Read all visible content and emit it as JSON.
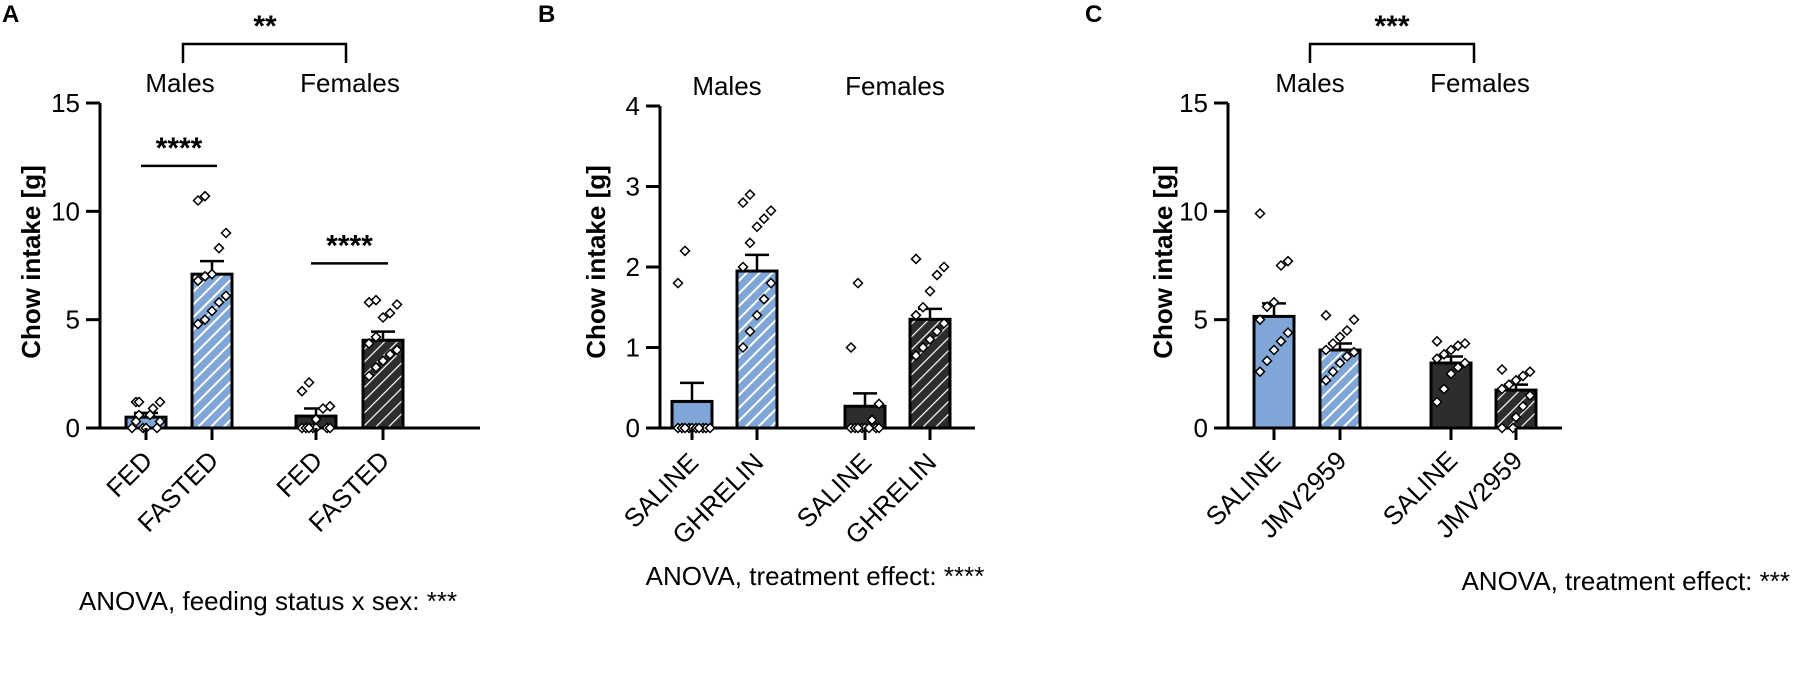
{
  "colors": {
    "male": "#7fa6d6",
    "female": "#2d2d2d",
    "axis": "#000000",
    "hatch": "#ffffff"
  },
  "chart_data": [
    {
      "panel": "A",
      "type": "bar",
      "ylabel": "Chow intake [g]",
      "ylim": [
        0,
        15
      ],
      "yticks": [
        0,
        5,
        10,
        15
      ],
      "groups": [
        "Males",
        "Females"
      ],
      "categories": [
        "FED",
        "FASTED",
        "FED",
        "FASTED"
      ],
      "bars": [
        {
          "group": "Males",
          "label": "FED",
          "value": 0.5,
          "sem": 0.2,
          "hatched": false,
          "points": [
            0,
            0,
            0,
            0,
            0.3,
            0.3,
            0.6,
            0.6,
            0.9,
            1.2,
            1.2,
            1.2
          ]
        },
        {
          "group": "Males",
          "label": "FASTED",
          "value": 7.1,
          "sem": 0.6,
          "hatched": true,
          "points": [
            4.8,
            5.0,
            5.4,
            5.8,
            6.1,
            6.8,
            7.0,
            7.1,
            8.3,
            9.0,
            10.5,
            10.7
          ]
        },
        {
          "group": "Females",
          "label": "FED",
          "value": 0.55,
          "sem": 0.35,
          "hatched": false,
          "points": [
            0,
            0,
            0,
            0,
            0,
            0,
            0,
            0.4,
            0.9,
            1.0,
            1.7,
            2.1
          ]
        },
        {
          "group": "Females",
          "label": "FASTED",
          "value": 4.05,
          "sem": 0.4,
          "hatched": true,
          "points": [
            2.4,
            2.8,
            3.1,
            3.4,
            3.6,
            3.9,
            4.2,
            5.1,
            5.3,
            5.7,
            5.8,
            5.9
          ]
        }
      ],
      "comparisons": [
        {
          "between": [
            0,
            1
          ],
          "label": "****",
          "y": 12.1
        },
        {
          "between": [
            2,
            3
          ],
          "label": "****",
          "y": 7.6
        }
      ],
      "group_comparison": {
        "label": "**"
      },
      "footnote": "ANOVA, feeding status x sex: ***"
    },
    {
      "panel": "B",
      "type": "bar",
      "ylabel": "Chow intake [g]",
      "ylim": [
        0,
        4
      ],
      "yticks": [
        0,
        1,
        2,
        3,
        4
      ],
      "groups": [
        "Males",
        "Females"
      ],
      "categories": [
        "SALINE",
        "GHRELIN",
        "SALINE",
        "GHRELIN"
      ],
      "bars": [
        {
          "group": "Males",
          "label": "SALINE",
          "value": 0.33,
          "sem": 0.23,
          "hatched": false,
          "points": [
            0,
            0,
            0,
            0,
            0,
            0,
            0,
            0,
            0,
            0,
            1.8,
            2.2
          ]
        },
        {
          "group": "Males",
          "label": "GHRELIN",
          "value": 1.95,
          "sem": 0.2,
          "hatched": true,
          "points": [
            1.0,
            1.2,
            1.4,
            1.6,
            1.8,
            2.0,
            2.3,
            2.5,
            2.6,
            2.7,
            2.8,
            2.9
          ]
        },
        {
          "group": "Females",
          "label": "SALINE",
          "value": 0.27,
          "sem": 0.16,
          "hatched": false,
          "points": [
            0,
            0,
            0,
            0,
            0,
            0,
            0,
            0,
            0.1,
            0.3,
            1.0,
            1.8
          ]
        },
        {
          "group": "Females",
          "label": "GHRELIN",
          "value": 1.35,
          "sem": 0.13,
          "hatched": true,
          "points": [
            0.9,
            1.0,
            1.1,
            1.2,
            1.3,
            1.4,
            1.5,
            1.7,
            1.9,
            2.0,
            2.1
          ]
        }
      ],
      "comparisons": [],
      "group_comparison": null,
      "footnote": "ANOVA, treatment effect: ****"
    },
    {
      "panel": "C",
      "type": "bar",
      "ylabel": "Chow intake [g]",
      "ylim": [
        0,
        15
      ],
      "yticks": [
        0,
        5,
        10,
        15
      ],
      "groups": [
        "Males",
        "Females"
      ],
      "categories": [
        "SALINE",
        "JMV2959",
        "SALINE",
        "JMV2959"
      ],
      "bars": [
        {
          "group": "Males",
          "label": "SALINE",
          "value": 5.15,
          "sem": 0.6,
          "hatched": false,
          "points": [
            2.6,
            3.1,
            3.6,
            4.0,
            4.4,
            5.0,
            5.6,
            5.8,
            7.5,
            7.7,
            9.9
          ]
        },
        {
          "group": "Males",
          "label": "JMV2959",
          "value": 3.6,
          "sem": 0.3,
          "hatched": true,
          "points": [
            2.2,
            2.6,
            3.0,
            3.3,
            3.5,
            3.6,
            3.9,
            4.2,
            4.5,
            5.0,
            5.2
          ]
        },
        {
          "group": "Females",
          "label": "SALINE",
          "value": 3.0,
          "sem": 0.3,
          "hatched": false,
          "points": [
            1.2,
            1.8,
            2.5,
            2.8,
            3.0,
            3.2,
            3.4,
            3.6,
            3.8,
            3.9,
            4.0
          ]
        },
        {
          "group": "Females",
          "label": "JMV2959",
          "value": 1.75,
          "sem": 0.25,
          "hatched": true,
          "points": [
            0,
            0,
            0.5,
            1.0,
            1.5,
            1.8,
            2.0,
            2.2,
            2.4,
            2.6,
            2.7
          ]
        }
      ],
      "comparisons": [],
      "group_comparison": {
        "label": "***"
      },
      "footnote": "ANOVA, treatment effect: ***"
    }
  ]
}
